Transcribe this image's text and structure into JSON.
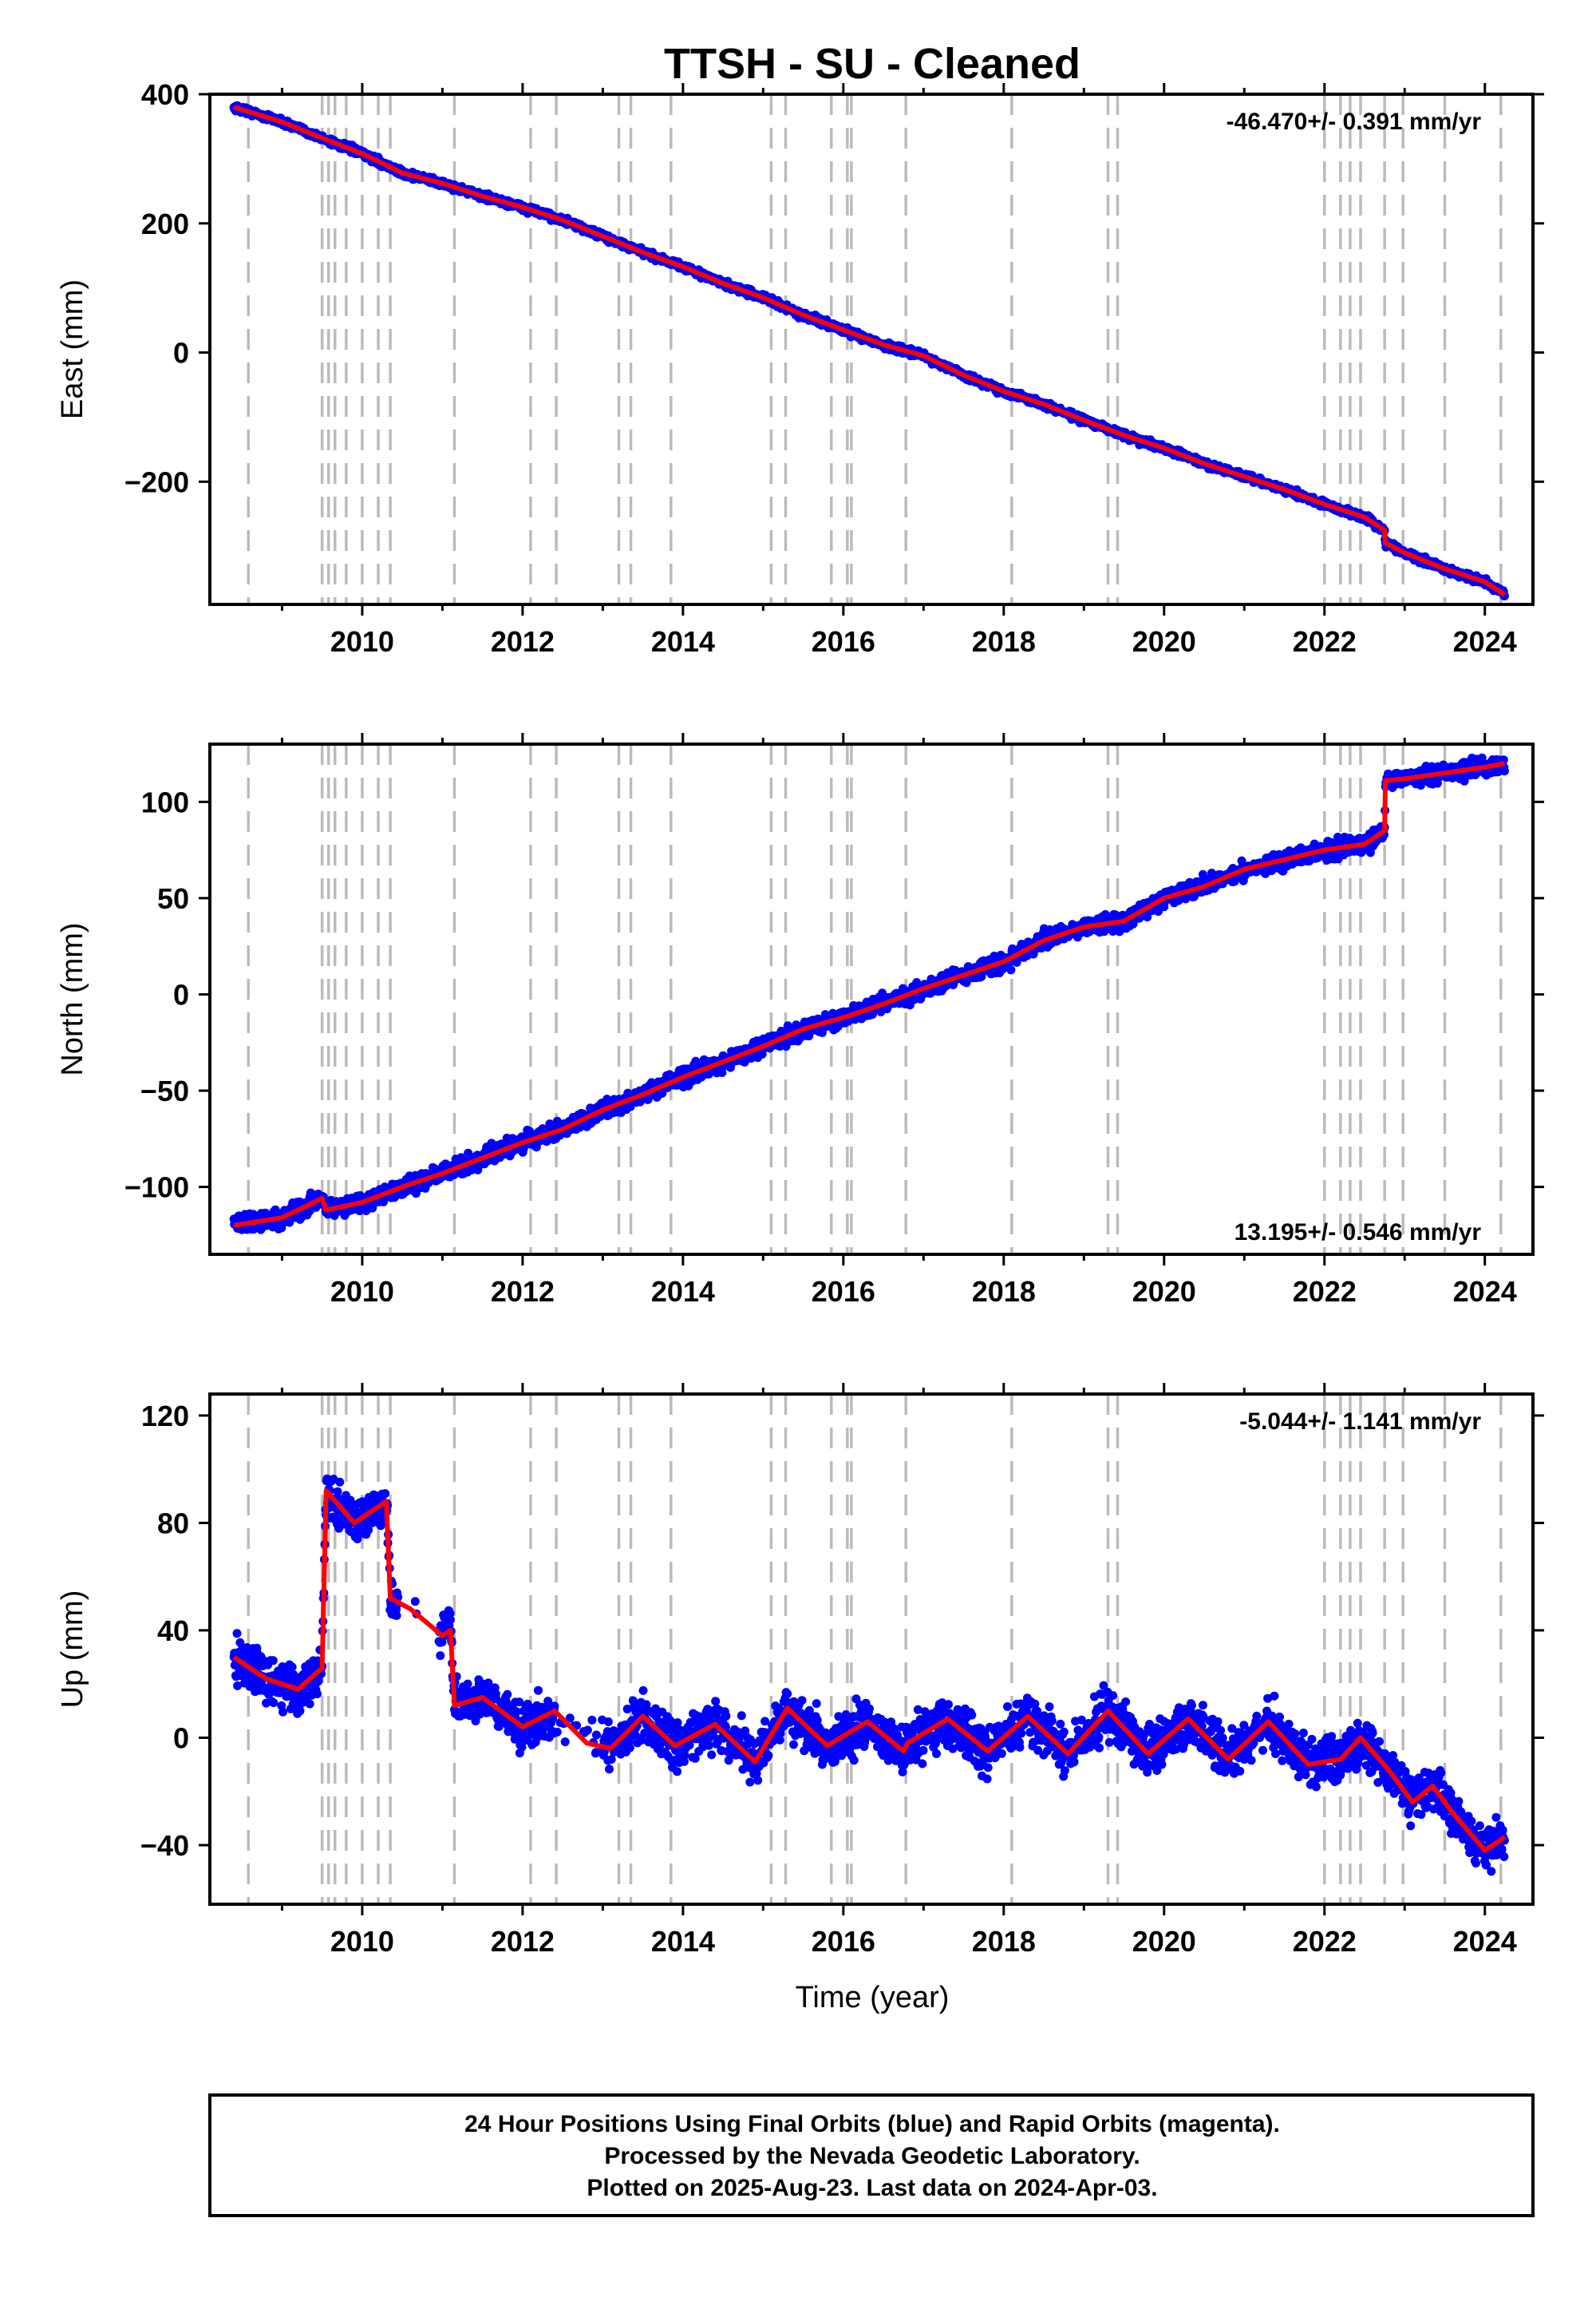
{
  "title": "TTSH  - SU - Cleaned",
  "xlabel": "Time (year)",
  "footer": {
    "line1": "24 Hour Positions Using Final Orbits (blue) and Rapid Orbits (magenta).",
    "line2": "Processed by the Nevada Geodetic Laboratory.",
    "line3": "Plotted on 2025-Aug-23. Last data on 2024-Apr-03."
  },
  "colors": {
    "data": "#0000ff",
    "model": "#ff0000",
    "steps": "#bbbbbb",
    "frame": "#000000"
  },
  "chart_data": [
    {
      "type": "scatter",
      "ylabel": "East (mm)",
      "rate_label": "-46.470+/- 0.391 mm/yr",
      "rate_position": "top-right",
      "xlim": [
        2008.1,
        2024.6
      ],
      "ylim": [
        -390,
        400
      ],
      "yticks": [
        400,
        200,
        0,
        -200
      ],
      "ytick_labels": [
        "400",
        "200",
        "0",
        "−200"
      ],
      "xticks": [
        2010,
        2012,
        2014,
        2016,
        2018,
        2020,
        2022,
        2024
      ],
      "xtick_labels": [
        "2010",
        "2012",
        "2014",
        "2016",
        "2018",
        "2020",
        "2022",
        "2024"
      ],
      "series": [
        {
          "x": [
            2008.4,
            2009.0,
            2009.5,
            2010.0,
            2010.5,
            2011.0,
            2011.5,
            2012.0,
            2012.5,
            2013.0,
            2013.5,
            2014.0,
            2014.5,
            2015.0,
            2015.5,
            2016.0,
            2016.5,
            2017.0,
            2017.5,
            2018.0,
            2018.5,
            2019.0,
            2019.5,
            2020.0,
            2020.5,
            2021.0,
            2021.5,
            2022.0,
            2022.5,
            2022.75,
            2022.76,
            2023.0,
            2023.5,
            2024.0,
            2024.25
          ],
          "y": [
            380,
            357,
            332,
            308,
            278,
            262,
            242,
            225,
            205,
            180,
            155,
            133,
            107,
            85,
            58,
            35,
            12,
            -5,
            -35,
            -60,
            -80,
            -105,
            -128,
            -148,
            -172,
            -192,
            -212,
            -235,
            -255,
            -275,
            -295,
            -310,
            -335,
            -355,
            -375
          ]
        }
      ]
    },
    {
      "type": "scatter",
      "ylabel": "North (mm)",
      "rate_label": "13.195+/- 0.546 mm/yr",
      "rate_position": "bottom-right",
      "xlim": [
        2008.1,
        2024.6
      ],
      "ylim": [
        -135,
        130
      ],
      "yticks": [
        100,
        50,
        0,
        -50,
        -100
      ],
      "ytick_labels": [
        "100",
        "50",
        "0",
        "−50",
        "−100"
      ],
      "xticks": [
        2010,
        2012,
        2014,
        2016,
        2018,
        2020,
        2022,
        2024
      ],
      "xtick_labels": [
        "2010",
        "2012",
        "2014",
        "2016",
        "2018",
        "2020",
        "2022",
        "2024"
      ],
      "series": [
        {
          "x": [
            2008.4,
            2009.0,
            2009.5,
            2009.55,
            2010.0,
            2010.5,
            2011.0,
            2011.5,
            2012.0,
            2012.5,
            2013.0,
            2013.5,
            2014.0,
            2014.5,
            2015.0,
            2015.5,
            2016.0,
            2016.5,
            2017.0,
            2017.5,
            2018.0,
            2018.5,
            2019.0,
            2019.5,
            2020.0,
            2020.5,
            2021.0,
            2021.5,
            2022.0,
            2022.5,
            2022.75,
            2022.76,
            2023.0,
            2023.5,
            2024.0,
            2024.25
          ],
          "y": [
            -120,
            -116,
            -106,
            -112,
            -108,
            -100,
            -93,
            -85,
            -77,
            -70,
            -60,
            -52,
            -43,
            -35,
            -27,
            -18,
            -12,
            -5,
            3,
            10,
            17,
            28,
            35,
            38,
            50,
            56,
            65,
            70,
            75,
            78,
            85,
            111,
            112,
            115,
            118,
            120
          ]
        }
      ]
    },
    {
      "type": "scatter",
      "ylabel": "Up (mm)",
      "rate_label": "-5.044+/- 1.141 mm/yr",
      "rate_position": "top-right",
      "xlim": [
        2008.1,
        2024.6
      ],
      "ylim": [
        -62,
        128
      ],
      "yticks": [
        120,
        80,
        40,
        0,
        -40
      ],
      "ytick_labels": [
        "120",
        "80",
        "40",
        "0",
        "−40"
      ],
      "xticks": [
        2010,
        2012,
        2014,
        2016,
        2018,
        2020,
        2022,
        2024
      ],
      "xtick_labels": [
        "2010",
        "2012",
        "2014",
        "2016",
        "2018",
        "2020",
        "2022",
        "2024"
      ],
      "series": [
        {
          "x": [
            2008.4,
            2008.8,
            2009.2,
            2009.5,
            2009.5,
            2009.55,
            2009.9,
            2010.3,
            2010.35,
            2010.6,
            2011.0,
            2011.1,
            2011.15,
            2011.5,
            2012.0,
            2012.4,
            2012.8,
            2013.1,
            2013.5,
            2013.9,
            2014.4,
            2014.9,
            2015.3,
            2015.8,
            2016.3,
            2016.75,
            2016.8,
            2017.3,
            2017.8,
            2018.3,
            2018.8,
            2019.3,
            2019.8,
            2020.3,
            2020.8,
            2021.3,
            2021.8,
            2022.2,
            2022.45,
            2022.8,
            2023.1,
            2023.35,
            2023.6,
            2024.0,
            2024.25
          ],
          "y": [
            30,
            22,
            18,
            26,
            26,
            92,
            80,
            88,
            52,
            48,
            38,
            40,
            12,
            15,
            4,
            10,
            -2,
            -4,
            8,
            -3,
            5,
            -9,
            11,
            -3,
            6,
            -5,
            -2,
            7,
            -5,
            8,
            -6,
            10,
            -6,
            7,
            -8,
            6,
            -10,
            -8,
            0,
            -12,
            -24,
            -18,
            -28,
            -42,
            -37
          ]
        }
      ]
    }
  ]
}
